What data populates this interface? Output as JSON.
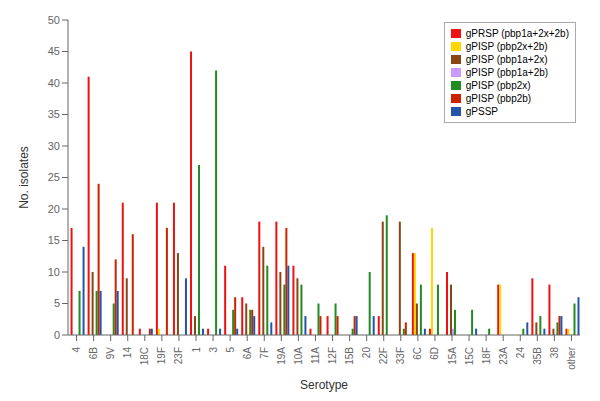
{
  "chart_data": {
    "type": "bar",
    "xlabel": "Serotype",
    "ylabel": "No. isolates",
    "categories": [
      "4",
      "6B",
      "9V",
      "14",
      "18C",
      "19F",
      "23F",
      "1",
      "3",
      "5",
      "6A",
      "7F",
      "19A",
      "10A",
      "11A",
      "12F",
      "15B",
      "20",
      "22F",
      "33F",
      "6C",
      "6D",
      "15A",
      "15C",
      "18F",
      "23A",
      "24",
      "35B",
      "38",
      "other"
    ],
    "series": [
      {
        "name": "gPRSP (pbp1a+2x+2b)",
        "color": "#EE1111",
        "values": [
          17,
          41,
          0,
          21,
          1,
          21,
          21,
          45,
          1,
          11,
          6,
          18,
          18,
          11,
          1,
          3,
          0,
          0,
          3,
          0,
          13,
          1,
          10,
          0,
          0,
          8,
          0,
          9,
          8,
          1
        ]
      },
      {
        "name": "gPISP (pbp2x+2b)",
        "color": "#FFD700",
        "values": [
          0,
          0,
          0,
          0,
          0,
          1,
          0,
          0,
          0,
          0,
          0,
          0,
          0,
          0,
          0,
          0,
          0,
          0,
          0,
          0,
          13,
          17,
          0,
          0,
          0,
          8,
          0,
          0,
          0,
          1
        ]
      },
      {
        "name": "gPISP (pbp1a+2x)",
        "color": "#8B4513",
        "values": [
          0,
          10,
          0,
          9,
          0,
          0,
          13,
          3,
          0,
          0,
          5,
          14,
          10,
          9,
          0,
          0,
          0,
          0,
          18,
          18,
          5,
          0,
          8,
          0,
          0,
          0,
          0,
          2,
          1,
          0
        ]
      },
      {
        "name": "gPISP (pbp1a+2b)",
        "color": "#CC99FF",
        "values": [
          0,
          0,
          0,
          0,
          0,
          0,
          0,
          0,
          0,
          0,
          0,
          0,
          0,
          0,
          0,
          0,
          0,
          0,
          0,
          0,
          0,
          0,
          1,
          0,
          0,
          0,
          0,
          0,
          0,
          0
        ]
      },
      {
        "name": "gPISP (pbp2x)",
        "color": "#228B22",
        "values": [
          7,
          7,
          5,
          0,
          0,
          0,
          0,
          27,
          42,
          4,
          4,
          11,
          8,
          8,
          5,
          5,
          1,
          10,
          19,
          1,
          8,
          8,
          4,
          4,
          1,
          0,
          1,
          3,
          2,
          5
        ]
      },
      {
        "name": "gPISP (pbp2b)",
        "color": "#CC2200",
        "values": [
          0,
          24,
          12,
          16,
          1,
          17,
          0,
          0,
          0,
          6,
          4,
          0,
          17,
          0,
          3,
          3,
          3,
          0,
          0,
          2,
          0,
          0,
          0,
          0,
          0,
          0,
          0,
          0,
          3,
          0
        ]
      },
      {
        "name": "gPSSP",
        "color": "#2255AA",
        "values": [
          14,
          7,
          7,
          0,
          1,
          0,
          9,
          1,
          1,
          1,
          3,
          2,
          11,
          3,
          0,
          0,
          3,
          3,
          0,
          0,
          1,
          0,
          0,
          1,
          0,
          0,
          2,
          1,
          3,
          6
        ]
      }
    ],
    "ylim": [
      0,
      50
    ],
    "yticks": [
      0,
      5,
      10,
      15,
      20,
      25,
      30,
      35,
      40,
      45,
      50
    ],
    "grid": false,
    "legend": "upper right"
  }
}
